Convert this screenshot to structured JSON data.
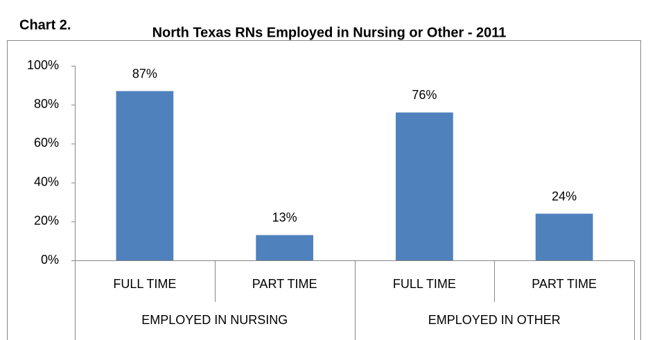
{
  "chart_data": {
    "type": "bar",
    "label": "Chart 2.",
    "title": "North Texas RNs Employed in Nursing or Other - 2011",
    "categories": [
      "FULL TIME",
      "PART TIME",
      "FULL TIME",
      "PART TIME"
    ],
    "groups": [
      "EMPLOYED IN NURSING",
      "EMPLOYED IN OTHER"
    ],
    "values": [
      87,
      13,
      76,
      24
    ],
    "value_labels": [
      "87%",
      "13%",
      "76%",
      "24%"
    ],
    "color": "#4f81bd",
    "ylim": [
      0,
      100
    ],
    "yticks": [
      {
        "value": 0,
        "label": "0%"
      },
      {
        "value": 20,
        "label": "20%"
      },
      {
        "value": 40,
        "label": "40%"
      },
      {
        "value": 60,
        "label": "60%"
      },
      {
        "value": 80,
        "label": "80%"
      },
      {
        "value": 100,
        "label": "100%"
      }
    ],
    "grid": false
  }
}
